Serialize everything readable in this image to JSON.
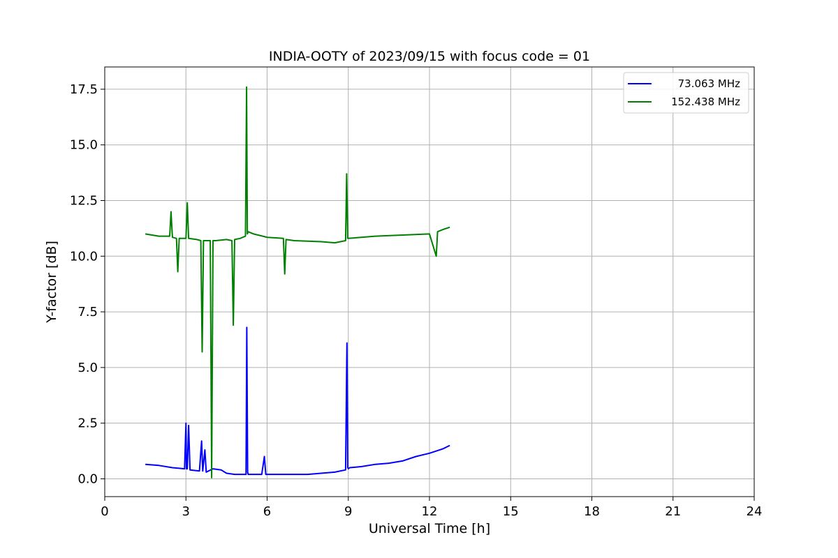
{
  "chart_data": {
    "type": "line",
    "title": "INDIA-OOTY of 2023/09/15 with focus code = 01",
    "xlabel": "Universal Time [h]",
    "ylabel": "Y-factor [dB]",
    "xlim": [
      0,
      24
    ],
    "ylim": [
      -0.8,
      18.5
    ],
    "xticks": [
      0,
      3,
      6,
      9,
      12,
      15,
      18,
      21,
      24
    ],
    "xtick_labels": [
      "0",
      "3",
      "6",
      "9",
      "12",
      "15",
      "18",
      "21",
      "24"
    ],
    "yticks": [
      0.0,
      2.5,
      5.0,
      7.5,
      10.0,
      12.5,
      15.0,
      17.5
    ],
    "ytick_labels": [
      "0.0",
      "2.5",
      "5.0",
      "7.5",
      "10.0",
      "12.5",
      "15.0",
      "17.5"
    ],
    "grid": true,
    "legend_position": "top-right",
    "series": [
      {
        "name": "73.063 MHz",
        "color": "#0000ff",
        "x": [
          1.5,
          2.0,
          2.5,
          2.95,
          3.0,
          3.02,
          3.05,
          3.1,
          3.15,
          3.5,
          3.58,
          3.62,
          3.7,
          3.75,
          4.0,
          4.3,
          4.5,
          4.8,
          5.0,
          5.22,
          5.25,
          5.28,
          5.3,
          5.5,
          5.8,
          5.9,
          5.95,
          6.0,
          6.1,
          6.5,
          7.0,
          7.5,
          8.0,
          8.5,
          8.9,
          8.95,
          8.98,
          9.0,
          9.05,
          9.5,
          10.0,
          10.5,
          11.0,
          11.5,
          12.0,
          12.5,
          12.75
        ],
        "y": [
          0.65,
          0.6,
          0.5,
          0.45,
          2.5,
          0.45,
          0.45,
          2.4,
          0.4,
          0.35,
          1.7,
          0.35,
          1.3,
          0.3,
          0.45,
          0.4,
          0.25,
          0.2,
          0.2,
          0.2,
          6.8,
          0.3,
          0.2,
          0.2,
          0.2,
          1.0,
          0.2,
          0.2,
          0.2,
          0.2,
          0.2,
          0.2,
          0.25,
          0.3,
          0.4,
          6.1,
          0.5,
          0.45,
          0.5,
          0.55,
          0.65,
          0.7,
          0.8,
          1.0,
          1.15,
          1.35,
          1.5
        ]
      },
      {
        "name": "152.438 MHz",
        "color": "#008000",
        "x": [
          1.5,
          2.0,
          2.4,
          2.45,
          2.5,
          2.65,
          2.7,
          2.75,
          3.0,
          3.05,
          3.1,
          3.4,
          3.55,
          3.6,
          3.65,
          3.7,
          3.9,
          3.95,
          4.0,
          4.05,
          4.1,
          4.5,
          4.7,
          4.75,
          4.8,
          5.0,
          5.2,
          5.24,
          5.27,
          5.3,
          5.5,
          6.0,
          6.6,
          6.65,
          6.7,
          7.0,
          8.0,
          8.5,
          8.9,
          8.94,
          8.98,
          9.0,
          10.0,
          11.0,
          12.0,
          12.25,
          12.3,
          12.5,
          12.75
        ],
        "y": [
          11.0,
          10.9,
          10.9,
          12.0,
          10.85,
          10.8,
          9.3,
          10.8,
          10.8,
          12.4,
          10.8,
          10.75,
          10.7,
          5.7,
          10.7,
          10.7,
          10.7,
          0.05,
          10.7,
          10.7,
          10.7,
          10.75,
          10.7,
          6.9,
          10.75,
          10.8,
          10.9,
          17.6,
          11.0,
          11.1,
          11.0,
          10.85,
          10.8,
          9.2,
          10.75,
          10.7,
          10.65,
          10.6,
          10.7,
          13.7,
          10.8,
          10.8,
          10.9,
          10.95,
          11.0,
          10.0,
          11.1,
          11.2,
          11.3
        ]
      }
    ]
  }
}
